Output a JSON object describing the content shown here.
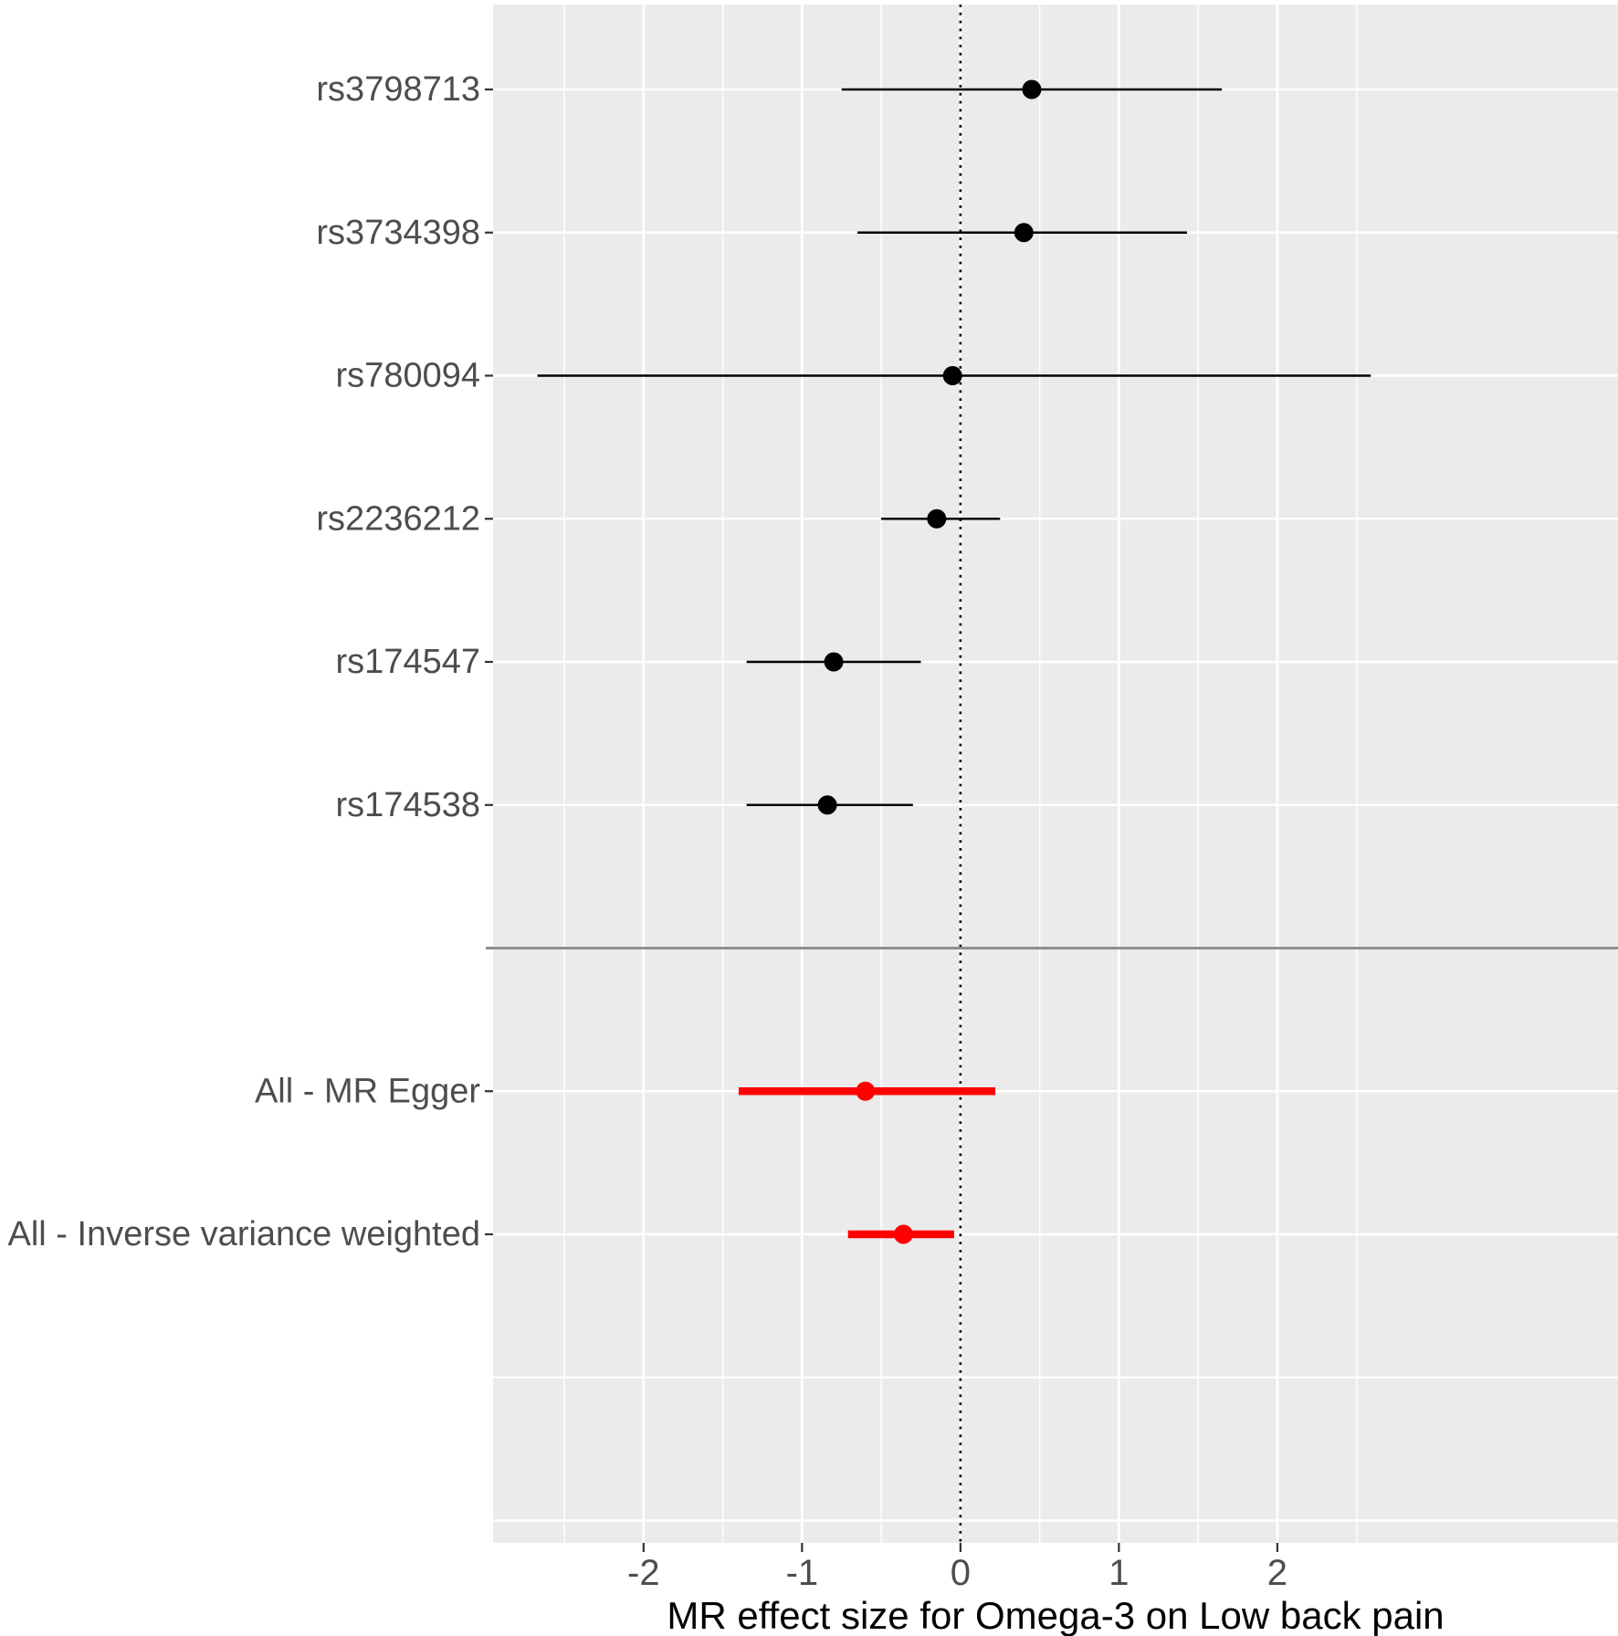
{
  "figure": {
    "kind": "forest-plot",
    "x_axis_title": "MR effect size for Omega-3 on Low back pain"
  },
  "chart_data": {
    "type": "forest",
    "title": "",
    "xlabel": "MR effect size for Omega-3 on Low back pain",
    "ylabel": "",
    "xlim": [
      -2.95,
      4.15
    ],
    "x_ticks": [
      -2,
      -1,
      0,
      1,
      2
    ],
    "x_minor_ticks": [
      -2.5,
      -1.5,
      -0.5,
      0.5,
      1.5,
      2.5
    ],
    "reference_line": 0,
    "grid": true,
    "legend": false,
    "rows": [
      {
        "label": "rs3798713",
        "estimate": 0.45,
        "ci_low": -0.75,
        "ci_high": 1.65,
        "group": "snp",
        "color": "#000000"
      },
      {
        "label": "rs3734398",
        "estimate": 0.4,
        "ci_low": -0.65,
        "ci_high": 1.43,
        "group": "snp",
        "color": "#000000"
      },
      {
        "label": "rs780094",
        "estimate": -0.05,
        "ci_low": -2.67,
        "ci_high": 2.59,
        "group": "snp",
        "color": "#000000"
      },
      {
        "label": "rs2236212",
        "estimate": -0.15,
        "ci_low": -0.5,
        "ci_high": 0.25,
        "group": "snp",
        "color": "#000000"
      },
      {
        "label": "rs174547",
        "estimate": -0.8,
        "ci_low": -1.35,
        "ci_high": -0.25,
        "group": "snp",
        "color": "#000000"
      },
      {
        "label": "rs174538",
        "estimate": -0.84,
        "ci_low": -1.35,
        "ci_high": -0.3,
        "group": "snp",
        "color": "#000000"
      },
      {
        "label": "",
        "separator": true
      },
      {
        "label": "All - MR Egger",
        "estimate": -0.6,
        "ci_low": -1.4,
        "ci_high": 0.22,
        "group": "summary",
        "color": "#FF0000"
      },
      {
        "label": "All - Inverse variance weighted",
        "estimate": -0.36,
        "ci_low": -0.71,
        "ci_high": -0.04,
        "group": "summary",
        "color": "#FF0000"
      }
    ],
    "style": {
      "panel_bg": "#EBEBEB",
      "grid": "#FFFFFF",
      "separator": "#8F8F8F",
      "reference_line": "#000000",
      "tick": "#333333",
      "axis_text": "#4D4D4D",
      "title_text": "#000000",
      "snp_color": "#000000",
      "summary_color": "#FF0000"
    }
  }
}
